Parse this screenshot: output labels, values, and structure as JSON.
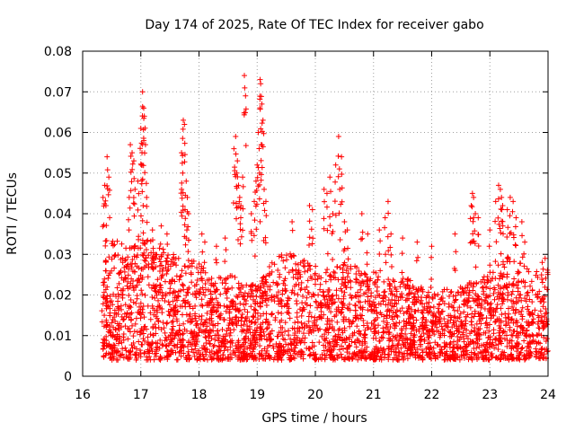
{
  "chart_data": {
    "type": "scatter",
    "title": "Day 174 of 2025, Rate Of TEC Index for receiver gabo",
    "xlabel": "GPS time / hours",
    "ylabel": "ROTI / TECUs",
    "xlim": [
      16,
      24
    ],
    "ylim": [
      0,
      0.08
    ],
    "grid": true,
    "marker": "+",
    "color": "#ff0000",
    "x_ticks": [
      "16",
      "17",
      "18",
      "19",
      "20",
      "21",
      "22",
      "23",
      "24"
    ],
    "y_ticks": [
      "0",
      "0.01",
      "0.02",
      "0.03",
      "0.04",
      "0.05",
      "0.06",
      "0.07",
      "0.08"
    ],
    "x_tick_values": [
      16,
      17,
      18,
      19,
      20,
      21,
      22,
      23,
      24
    ],
    "y_tick_values": [
      0,
      0.01,
      0.02,
      0.03,
      0.04,
      0.05,
      0.06,
      0.07,
      0.08
    ],
    "data_x_range": [
      16.33,
      24.0
    ],
    "envelope": [
      [
        16.33,
        0.028
      ],
      [
        16.5,
        0.034
      ],
      [
        16.75,
        0.032
      ],
      [
        17.0,
        0.034
      ],
      [
        17.25,
        0.033
      ],
      [
        17.5,
        0.03
      ],
      [
        17.75,
        0.03
      ],
      [
        18.0,
        0.028
      ],
      [
        18.25,
        0.024
      ],
      [
        18.5,
        0.025
      ],
      [
        18.75,
        0.024
      ],
      [
        19.0,
        0.022
      ],
      [
        19.25,
        0.028
      ],
      [
        19.5,
        0.031
      ],
      [
        19.75,
        0.03
      ],
      [
        20.0,
        0.028
      ],
      [
        20.25,
        0.026
      ],
      [
        20.5,
        0.028
      ],
      [
        20.75,
        0.027
      ],
      [
        21.0,
        0.026
      ],
      [
        21.25,
        0.024
      ],
      [
        21.5,
        0.025
      ],
      [
        21.75,
        0.023
      ],
      [
        22.0,
        0.02
      ],
      [
        22.25,
        0.022
      ],
      [
        22.5,
        0.022
      ],
      [
        22.75,
        0.024
      ],
      [
        23.0,
        0.025
      ],
      [
        23.25,
        0.03
      ],
      [
        23.5,
        0.028
      ],
      [
        23.75,
        0.026
      ],
      [
        24.0,
        0.027
      ]
    ],
    "peaks": [
      [
        16.35,
        0.044
      ],
      [
        16.38,
        0.047
      ],
      [
        16.42,
        0.054
      ],
      [
        16.45,
        0.049
      ],
      [
        16.4,
        0.042
      ],
      [
        16.82,
        0.057
      ],
      [
        16.85,
        0.055
      ],
      [
        16.88,
        0.053
      ],
      [
        16.8,
        0.044
      ],
      [
        16.9,
        0.046
      ],
      [
        16.95,
        0.048
      ],
      [
        17.0,
        0.061
      ],
      [
        17.03,
        0.07
      ],
      [
        17.05,
        0.066
      ],
      [
        17.06,
        0.064
      ],
      [
        17.08,
        0.057
      ],
      [
        17.02,
        0.055
      ],
      [
        17.01,
        0.052
      ],
      [
        17.1,
        0.044
      ],
      [
        17.04,
        0.042
      ],
      [
        17.2,
        0.036
      ],
      [
        17.35,
        0.037
      ],
      [
        17.45,
        0.035
      ],
      [
        17.7,
        0.055
      ],
      [
        17.73,
        0.063
      ],
      [
        17.75,
        0.062
      ],
      [
        17.72,
        0.05
      ],
      [
        17.78,
        0.048
      ],
      [
        17.8,
        0.044
      ],
      [
        17.76,
        0.041
      ],
      [
        17.82,
        0.04
      ],
      [
        17.7,
        0.046
      ],
      [
        18.05,
        0.035
      ],
      [
        18.1,
        0.033
      ],
      [
        18.3,
        0.032
      ],
      [
        18.45,
        0.034
      ],
      [
        18.6,
        0.056
      ],
      [
        18.63,
        0.059
      ],
      [
        18.65,
        0.05
      ],
      [
        18.68,
        0.047
      ],
      [
        18.7,
        0.044
      ],
      [
        18.72,
        0.042
      ],
      [
        18.75,
        0.049
      ],
      [
        18.78,
        0.074
      ],
      [
        18.8,
        0.069
      ],
      [
        18.66,
        0.053
      ],
      [
        18.9,
        0.04
      ],
      [
        18.95,
        0.043
      ],
      [
        18.98,
        0.048
      ],
      [
        19.0,
        0.052
      ],
      [
        19.02,
        0.06
      ],
      [
        19.05,
        0.073
      ],
      [
        19.06,
        0.072
      ],
      [
        19.08,
        0.067
      ],
      [
        19.1,
        0.063
      ],
      [
        19.07,
        0.057
      ],
      [
        19.12,
        0.046
      ],
      [
        19.15,
        0.043
      ],
      [
        19.04,
        0.05
      ],
      [
        19.6,
        0.038
      ],
      [
        19.9,
        0.042
      ],
      [
        19.95,
        0.041
      ],
      [
        20.15,
        0.046
      ],
      [
        20.2,
        0.045
      ],
      [
        20.25,
        0.049
      ],
      [
        20.3,
        0.04
      ],
      [
        20.35,
        0.052
      ],
      [
        20.4,
        0.059
      ],
      [
        20.45,
        0.054
      ],
      [
        20.42,
        0.046
      ],
      [
        20.5,
        0.038
      ],
      [
        20.55,
        0.036
      ],
      [
        20.8,
        0.04
      ],
      [
        20.9,
        0.035
      ],
      [
        21.1,
        0.036
      ],
      [
        21.2,
        0.039
      ],
      [
        21.25,
        0.043
      ],
      [
        21.3,
        0.035
      ],
      [
        21.5,
        0.034
      ],
      [
        21.75,
        0.033
      ],
      [
        22.0,
        0.032
      ],
      [
        22.4,
        0.035
      ],
      [
        22.7,
        0.045
      ],
      [
        22.72,
        0.044
      ],
      [
        22.68,
        0.042
      ],
      [
        22.75,
        0.04
      ],
      [
        22.8,
        0.039
      ],
      [
        23.0,
        0.036
      ],
      [
        23.1,
        0.043
      ],
      [
        23.15,
        0.047
      ],
      [
        23.18,
        0.046
      ],
      [
        23.2,
        0.044
      ],
      [
        23.22,
        0.042
      ],
      [
        23.3,
        0.041
      ],
      [
        23.35,
        0.044
      ],
      [
        23.4,
        0.043
      ],
      [
        23.45,
        0.039
      ],
      [
        23.55,
        0.038
      ],
      [
        23.6,
        0.033
      ],
      [
        23.9,
        0.028
      ],
      [
        23.95,
        0.029
      ]
    ],
    "baseline_min": 0.004
  }
}
